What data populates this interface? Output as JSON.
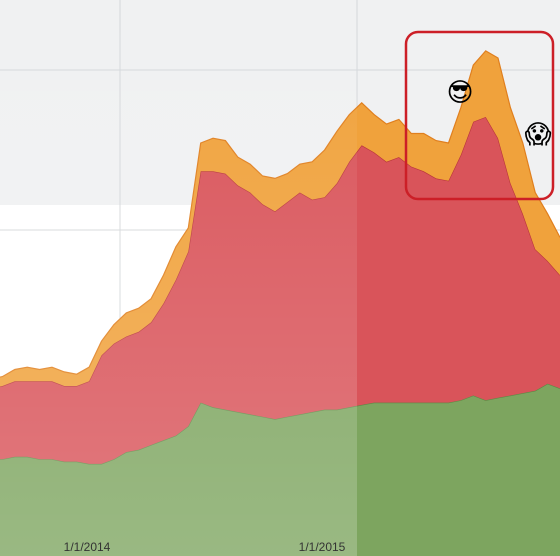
{
  "chart_data": {
    "type": "area",
    "stacked": true,
    "grid": true,
    "x_ticks": [
      "1/1/2014",
      "1/1/2015"
    ],
    "x": [
      "2013-10-01",
      "2013-10-15",
      "2013-11-01",
      "2013-11-15",
      "2013-12-01",
      "2013-12-15",
      "2014-01-01",
      "2014-01-15",
      "2014-02-01",
      "2014-02-15",
      "2014-03-01",
      "2014-03-15",
      "2014-04-01",
      "2014-04-15",
      "2014-05-01",
      "2014-05-15",
      "2014-06-01",
      "2014-06-15",
      "2014-07-01",
      "2014-07-15",
      "2014-08-01",
      "2014-08-15",
      "2014-09-01",
      "2014-09-15",
      "2014-10-01",
      "2014-10-15",
      "2014-11-01",
      "2014-11-15",
      "2014-12-01",
      "2014-12-15",
      "2015-01-01",
      "2015-01-15",
      "2015-02-01",
      "2015-02-15",
      "2015-03-01",
      "2015-03-15",
      "2015-04-01",
      "2015-04-15",
      "2015-05-01",
      "2015-05-15",
      "2015-06-01",
      "2015-06-15",
      "2015-07-01",
      "2015-07-15",
      "2015-08-01",
      "2015-08-15",
      "2015-09-01"
    ],
    "series": [
      {
        "color": "#7da55f",
        "values": [
          15,
          15,
          15.5,
          15.5,
          15,
          15,
          14.5,
          14.5,
          14,
          14,
          15,
          16.5,
          17,
          18,
          19,
          20,
          22,
          27,
          26,
          25.5,
          25,
          24.5,
          24,
          23.5,
          24,
          24.5,
          25,
          25.5,
          25.5,
          26,
          26.5,
          27,
          27,
          27,
          27,
          27,
          27,
          27,
          27.5,
          28.5,
          27.5,
          28,
          28.5,
          29,
          29.5,
          31,
          30
        ]
      },
      {
        "color": "#d9545a",
        "values": [
          15,
          15.5,
          16,
          16,
          16.5,
          16.5,
          16,
          16,
          17.5,
          23,
          24.5,
          24.5,
          25,
          26,
          29,
          33,
          37,
          49,
          50,
          50,
          48,
          47,
          45,
          44,
          45.5,
          47,
          45,
          45,
          48,
          52,
          55,
          53,
          51,
          52,
          50,
          49,
          47.5,
          47,
          52,
          58,
          60,
          55,
          45,
          38,
          30,
          26,
          24
        ]
      },
      {
        "color": "#f0a23c",
        "values": [
          2,
          2,
          2.5,
          3,
          2.5,
          3,
          3,
          2.5,
          3,
          3,
          4,
          5,
          5,
          5,
          6,
          7,
          5,
          6,
          7,
          7,
          6,
          6,
          6,
          7,
          6,
          6,
          8,
          10,
          11,
          10,
          9,
          8,
          8,
          8,
          7,
          8,
          8,
          8,
          10,
          12,
          14,
          17,
          16,
          15,
          12,
          10,
          8
        ]
      }
    ]
  },
  "annotation": {
    "emoji_left": "😎",
    "emoji_right": "😱",
    "highlight_color": "#cc1f27"
  }
}
